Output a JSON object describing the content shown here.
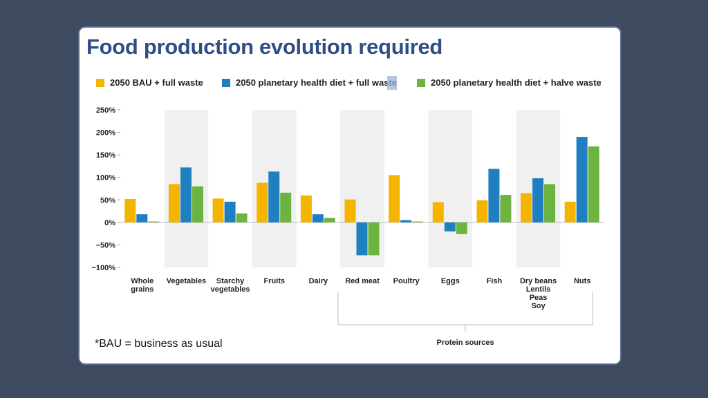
{
  "title": "Food production evolution required",
  "footnote": "*BAU = business as usual",
  "chart_data": {
    "type": "bar",
    "title": "Food production evolution required",
    "ylim": [
      -100,
      250
    ],
    "yticks": [
      -100,
      -50,
      0,
      50,
      100,
      150,
      200,
      250
    ],
    "ytick_labels": [
      "−100%",
      "−50%",
      "0%",
      "50%",
      "100%",
      "150%",
      "200%",
      "250%"
    ],
    "grid": false,
    "legend_position": "top",
    "categories": [
      [
        "Whole",
        "grains"
      ],
      [
        "Vegetables"
      ],
      [
        "Starchy",
        "vegetables"
      ],
      [
        "Fruits"
      ],
      [
        "Dairy"
      ],
      [
        "Red meat"
      ],
      [
        "Poultry"
      ],
      [
        "Eggs"
      ],
      [
        "Fish"
      ],
      [
        "Dry beans",
        "Lentils",
        "Peas",
        "Soy"
      ],
      [
        "Nuts"
      ]
    ],
    "series": [
      {
        "name": "2050 BAU + full waste",
        "color": "#f5b400",
        "values": [
          52,
          85,
          53,
          88,
          60,
          51,
          105,
          45,
          49,
          65,
          46
        ]
      },
      {
        "name": "2050 planetary health diet + full waste",
        "color": "#1f7fc0",
        "values": [
          18,
          122,
          46,
          113,
          18,
          -73,
          5,
          -20,
          119,
          98,
          190
        ]
      },
      {
        "name": "2050 planetary health diet + halve waste",
        "color": "#6cb33f",
        "values": [
          2,
          80,
          20,
          66,
          10,
          -73,
          2,
          -26,
          61,
          85,
          169
        ]
      }
    ],
    "group_annotation": {
      "label": "Protein sources",
      "from": "Red meat",
      "to": "Nuts"
    }
  }
}
